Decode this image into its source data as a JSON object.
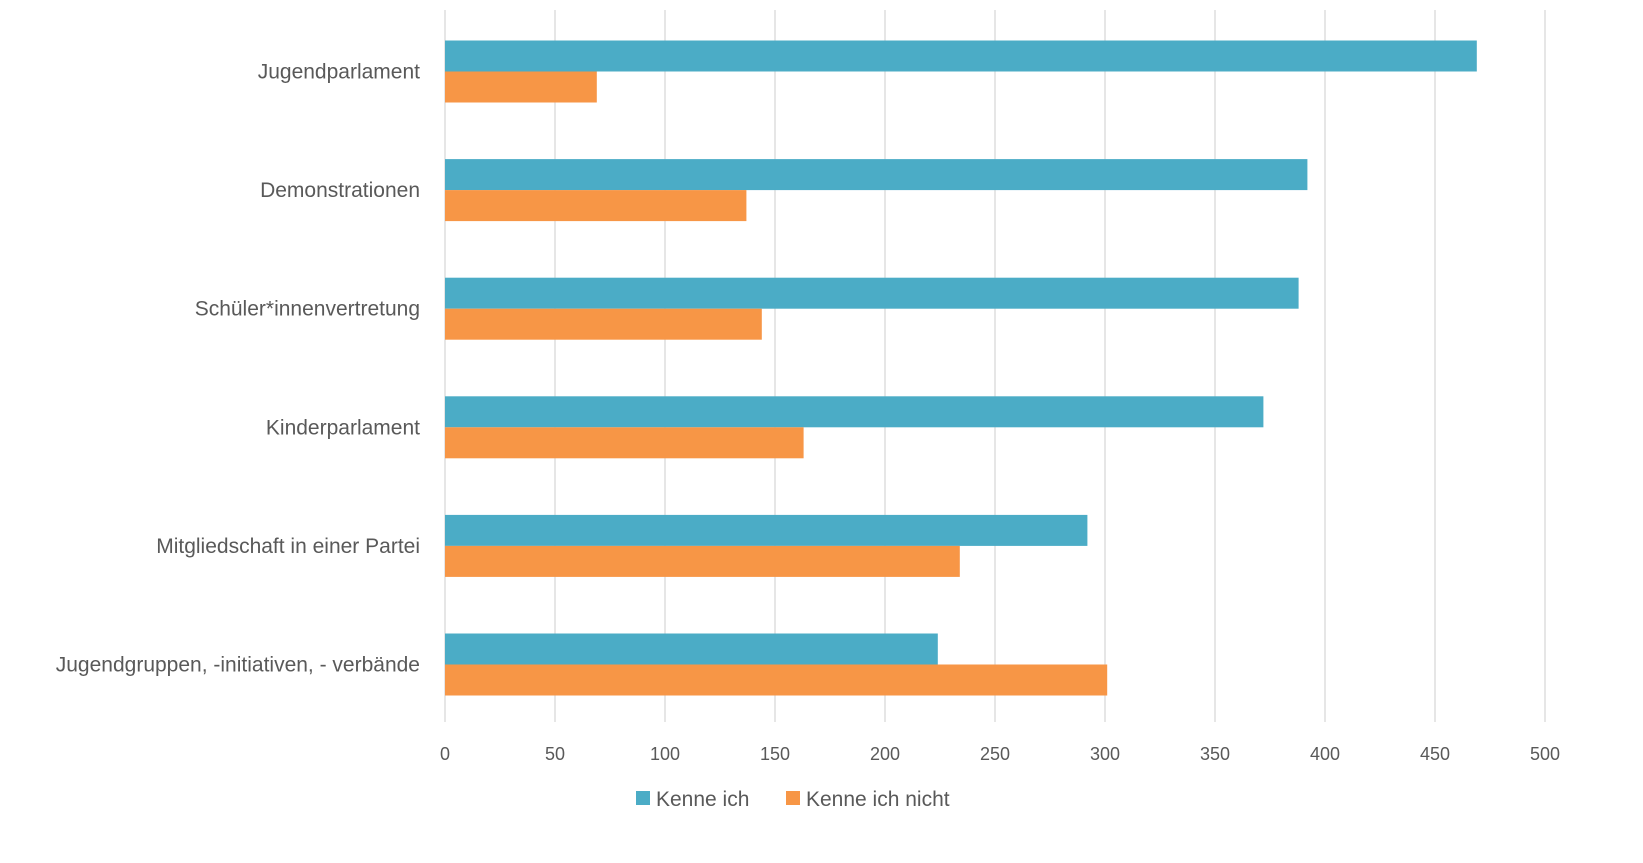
{
  "chart_data": {
    "type": "bar",
    "orientation": "horizontal",
    "title": "",
    "xlabel": "",
    "ylabel": "",
    "categories": [
      "Jugendparlament",
      "Demonstrationen",
      "Schüler*innenvertretung",
      "Kinderparlament",
      "Mitgliedschaft in einer Partei",
      "Jugendgruppen, -initiativen, - verbände"
    ],
    "series": [
      {
        "name": "Kenne ich",
        "color": "#4bacc6",
        "values": [
          469,
          392,
          388,
          372,
          292,
          224
        ]
      },
      {
        "name": "Kenne ich nicht",
        "color": "#f79646",
        "values": [
          69,
          137,
          144,
          163,
          234,
          301
        ]
      }
    ],
    "xlim": [
      0,
      500
    ],
    "ticks": [
      0,
      50,
      100,
      150,
      200,
      250,
      300,
      350,
      400,
      450,
      500
    ],
    "tick_labels": [
      "0",
      "50",
      "100",
      "150",
      "200",
      "250",
      "300",
      "350",
      "400",
      "450",
      "500"
    ],
    "grid": "vertical",
    "legend": "bottom"
  }
}
